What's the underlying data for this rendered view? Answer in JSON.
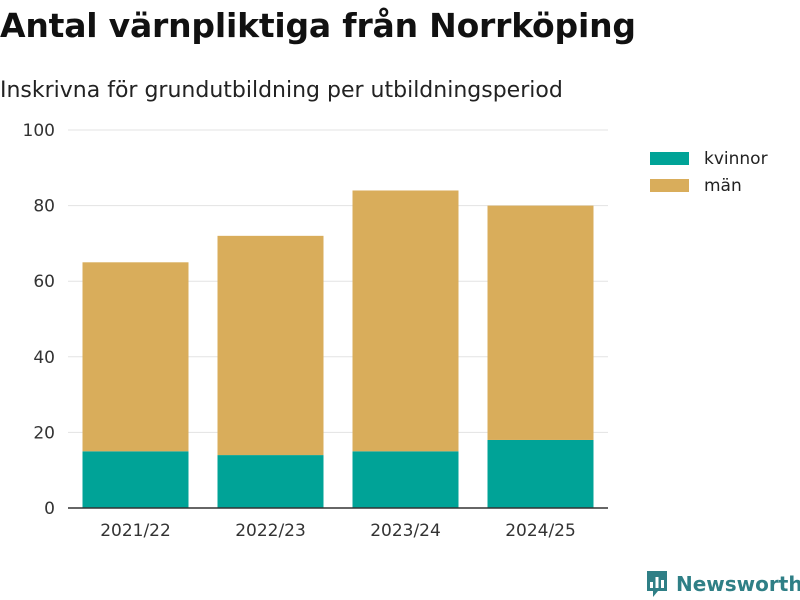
{
  "title": "Antal värnpliktiga från Norrköping",
  "subtitle": "Inskrivna för grundutbildning per utbildningsperiod",
  "brand": "Newsworthy",
  "chart_data": {
    "type": "bar",
    "stacked": true,
    "categories": [
      "2021/22",
      "2022/23",
      "2023/24",
      "2024/25"
    ],
    "series": [
      {
        "name": "kvinnor",
        "color": "#00a397",
        "values": [
          15,
          14,
          15,
          18
        ]
      },
      {
        "name": "män",
        "color": "#d9ad5b",
        "values": [
          50,
          58,
          69,
          62
        ]
      }
    ],
    "ylim": [
      0,
      100
    ],
    "yticks": [
      0,
      20,
      40,
      60,
      80,
      100
    ],
    "grid": true,
    "legend": "top-right"
  }
}
